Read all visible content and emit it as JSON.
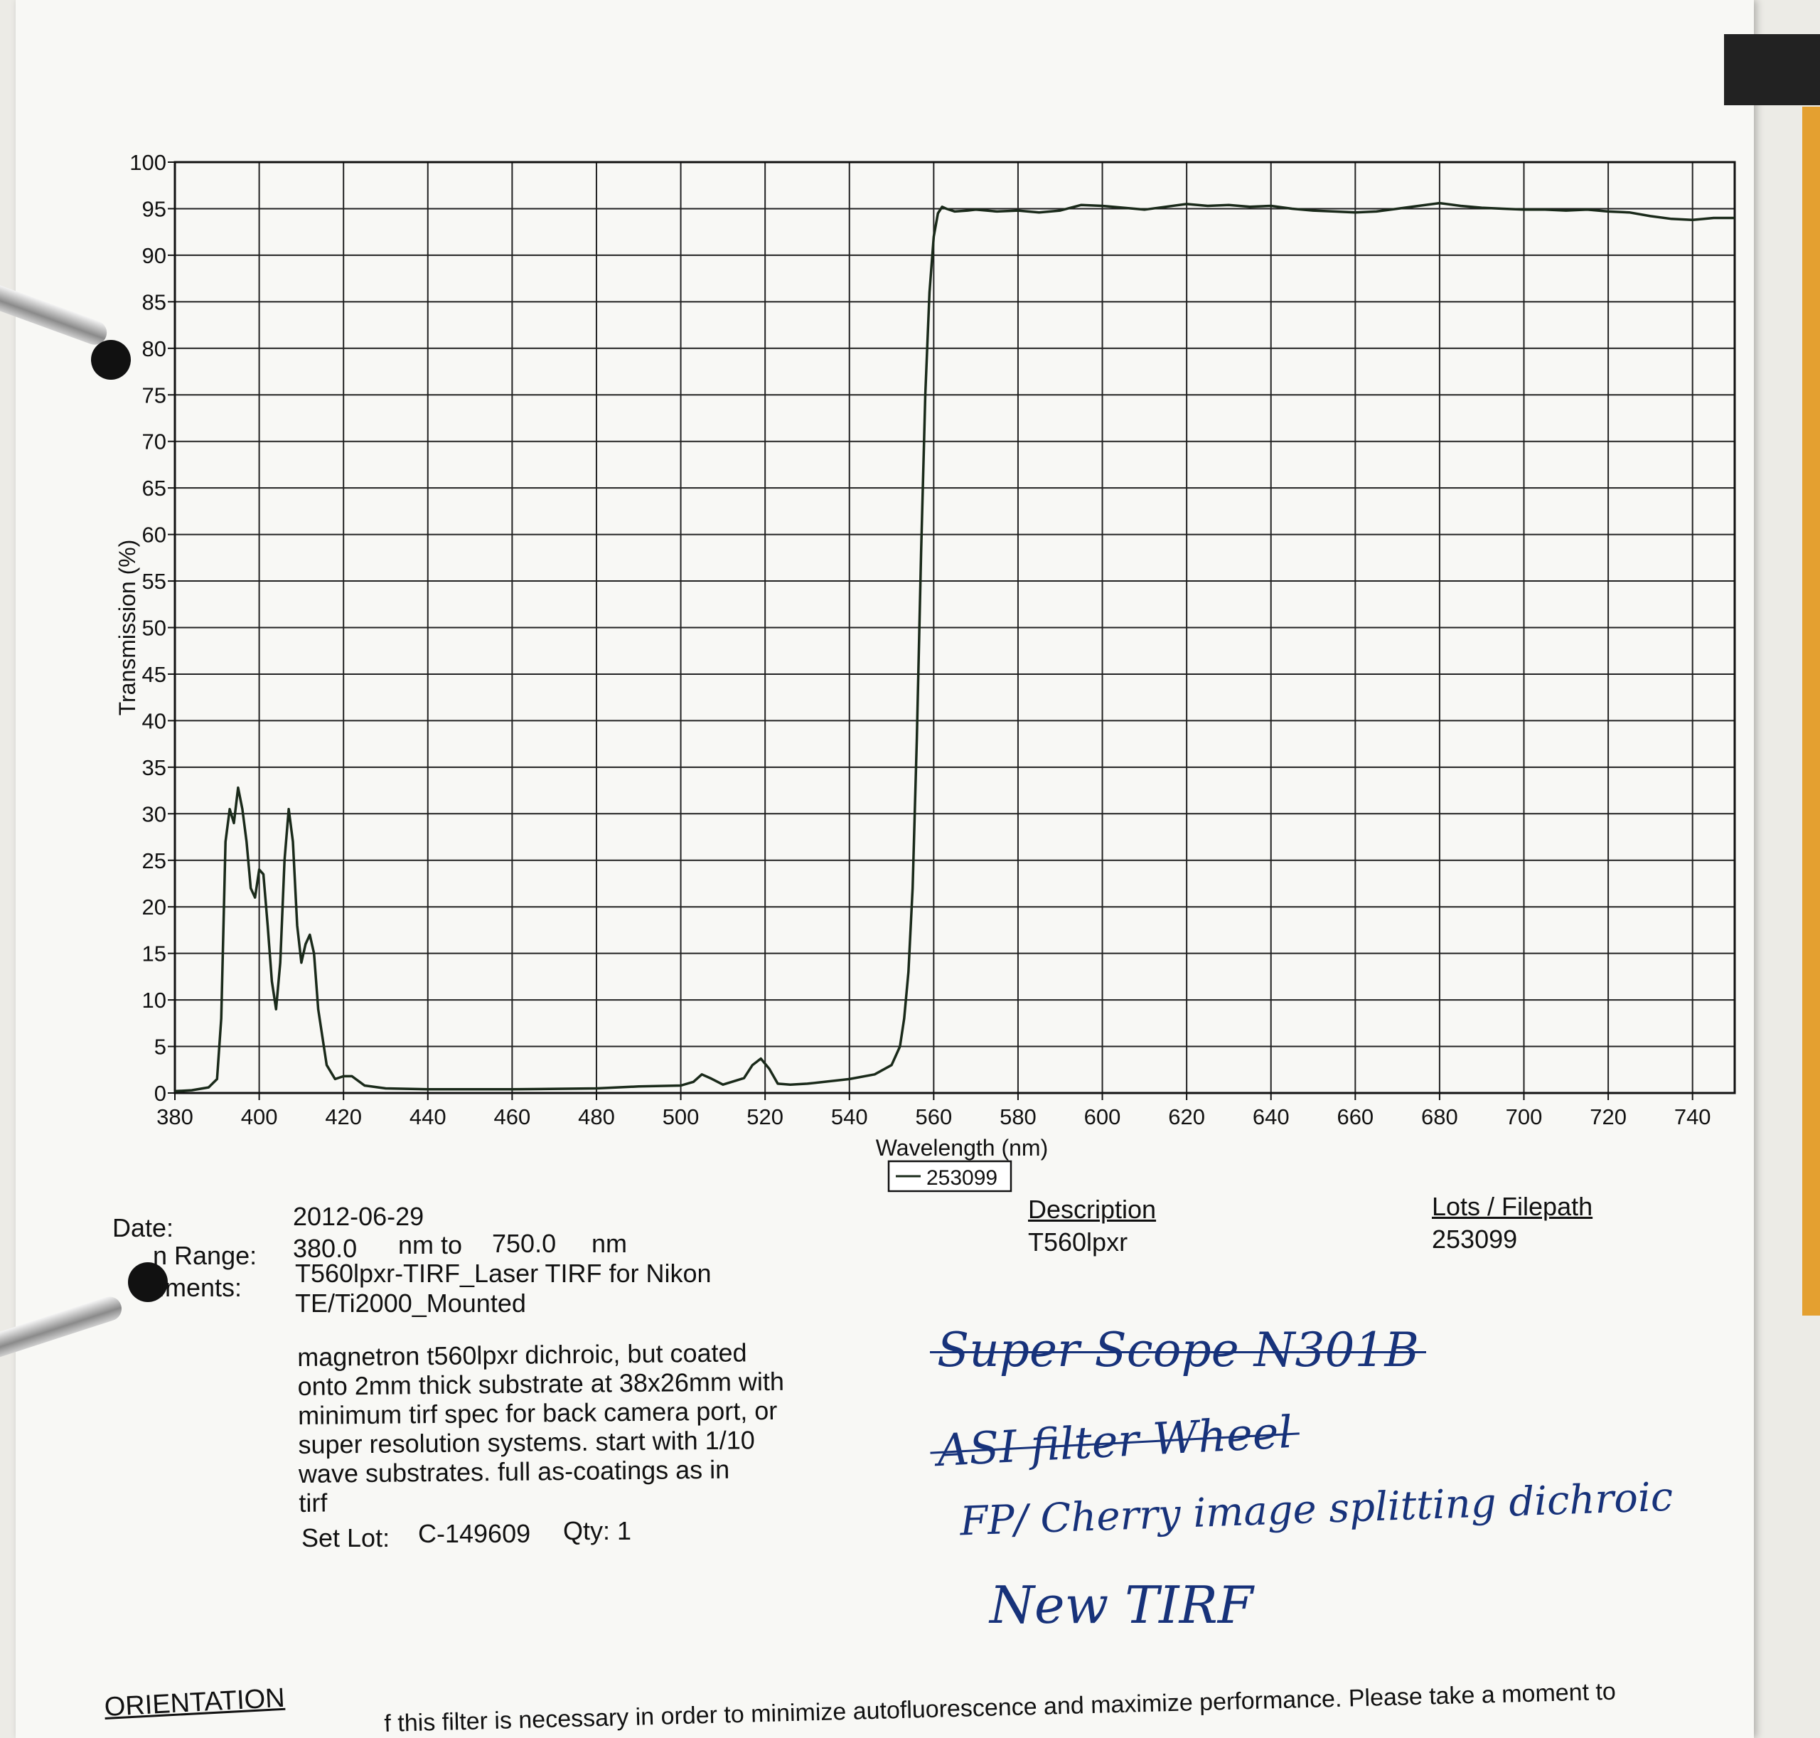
{
  "chart_data": {
    "type": "line",
    "xlabel": "Wavelength (nm)",
    "ylabel": "Transmission (%)",
    "xlim": [
      380,
      750
    ],
    "ylim": [
      0,
      100
    ],
    "x_ticks": [
      380,
      400,
      420,
      440,
      460,
      480,
      500,
      520,
      540,
      560,
      580,
      600,
      620,
      640,
      660,
      680,
      700,
      720,
      740
    ],
    "y_ticks": [
      0,
      5,
      10,
      15,
      20,
      25,
      30,
      35,
      40,
      45,
      50,
      55,
      60,
      65,
      70,
      75,
      80,
      85,
      90,
      95,
      100
    ],
    "grid": true,
    "legend_position": "bottom-center",
    "series": [
      {
        "name": "253099",
        "color": "#1a2a1a",
        "x": [
          380,
          384,
          388,
          390,
          391,
          392,
          393,
          394,
          395,
          396,
          397,
          398,
          399,
          400,
          401,
          402,
          403,
          404,
          405,
          406,
          407,
          408,
          409,
          410,
          411,
          412,
          413,
          414,
          416,
          418,
          420,
          422,
          425,
          430,
          440,
          460,
          480,
          490,
          500,
          503,
          505,
          507,
          510,
          515,
          517,
          519,
          521,
          523,
          526,
          530,
          540,
          546,
          550,
          552,
          553,
          554,
          555,
          556,
          557,
          558,
          559,
          560,
          561,
          562,
          563,
          565,
          568,
          570,
          575,
          580,
          585,
          590,
          595,
          600,
          605,
          610,
          615,
          620,
          625,
          630,
          635,
          640,
          645,
          650,
          655,
          660,
          665,
          670,
          675,
          680,
          685,
          690,
          695,
          700,
          705,
          710,
          715,
          720,
          725,
          730,
          735,
          740,
          745,
          750
        ],
        "y": [
          0.2,
          0.3,
          0.6,
          1.5,
          8,
          27,
          30.5,
          29,
          32.8,
          30.5,
          27,
          22,
          21,
          24,
          23.5,
          18,
          12,
          9,
          14,
          25,
          30.5,
          27,
          18,
          14,
          16,
          17,
          15,
          9,
          3,
          1.5,
          1.8,
          1.8,
          0.8,
          0.5,
          0.4,
          0.4,
          0.5,
          0.7,
          0.8,
          1.2,
          2.0,
          1.6,
          0.9,
          1.6,
          3.0,
          3.7,
          2.6,
          1.0,
          0.9,
          1.0,
          1.5,
          2.0,
          3.0,
          5.0,
          8,
          13,
          22,
          38,
          58,
          75,
          86,
          92,
          94.5,
          95.2,
          95.0,
          94.7,
          94.8,
          94.9,
          94.7,
          94.8,
          94.6,
          94.8,
          95.4,
          95.3,
          95.1,
          94.9,
          95.2,
          95.5,
          95.3,
          95.4,
          95.2,
          95.3,
          95.0,
          94.8,
          94.7,
          94.6,
          94.7,
          95.0,
          95.3,
          95.6,
          95.3,
          95.1,
          95.0,
          94.9,
          94.9,
          94.8,
          94.9,
          94.7,
          94.6,
          94.2,
          93.9,
          93.8,
          94.0,
          94.0
        ]
      }
    ]
  },
  "info": {
    "date_label": "Date:",
    "date_value": "2012-06-29",
    "scan_range_label": "n Range:",
    "scan_start": "380.0",
    "scan_unit_to": "nm to",
    "scan_end": "750.0",
    "scan_unit": "nm",
    "comments_label": "ıments:",
    "comments_line1": "T560lpxr-TIRF_Laser TIRF for Nikon",
    "comments_line2": "TE/Ti2000_Mounted",
    "notes": [
      "magnetron t560lpxr dichroic, but coated",
      "onto 2mm thick substrate at 38x26mm with",
      "minimum tirf spec for back camera port, or",
      "super resolution systems.  start with 1/10",
      "wave substrates.  full as-coatings as in",
      "tirf"
    ],
    "set_lot_label": "Set Lot:",
    "set_lot_value": "C-149609",
    "qty_text": "Qty: 1",
    "description_header": "Description",
    "description_value": "T560lpxr",
    "lots_header": "Lots / Filepath",
    "lots_value": "253099"
  },
  "handwriting": {
    "line1": "Super Scope  N301B",
    "line2": "ASI filter Wheel",
    "line3": "FP/ Cherry image splitting dichroic",
    "line4": "New TIRF"
  },
  "footer": {
    "heading": "ORIENTATION",
    "cut_text": "f this filter is necessary in order to minimize autofluorescence and maximize performance. Please take a moment to"
  }
}
